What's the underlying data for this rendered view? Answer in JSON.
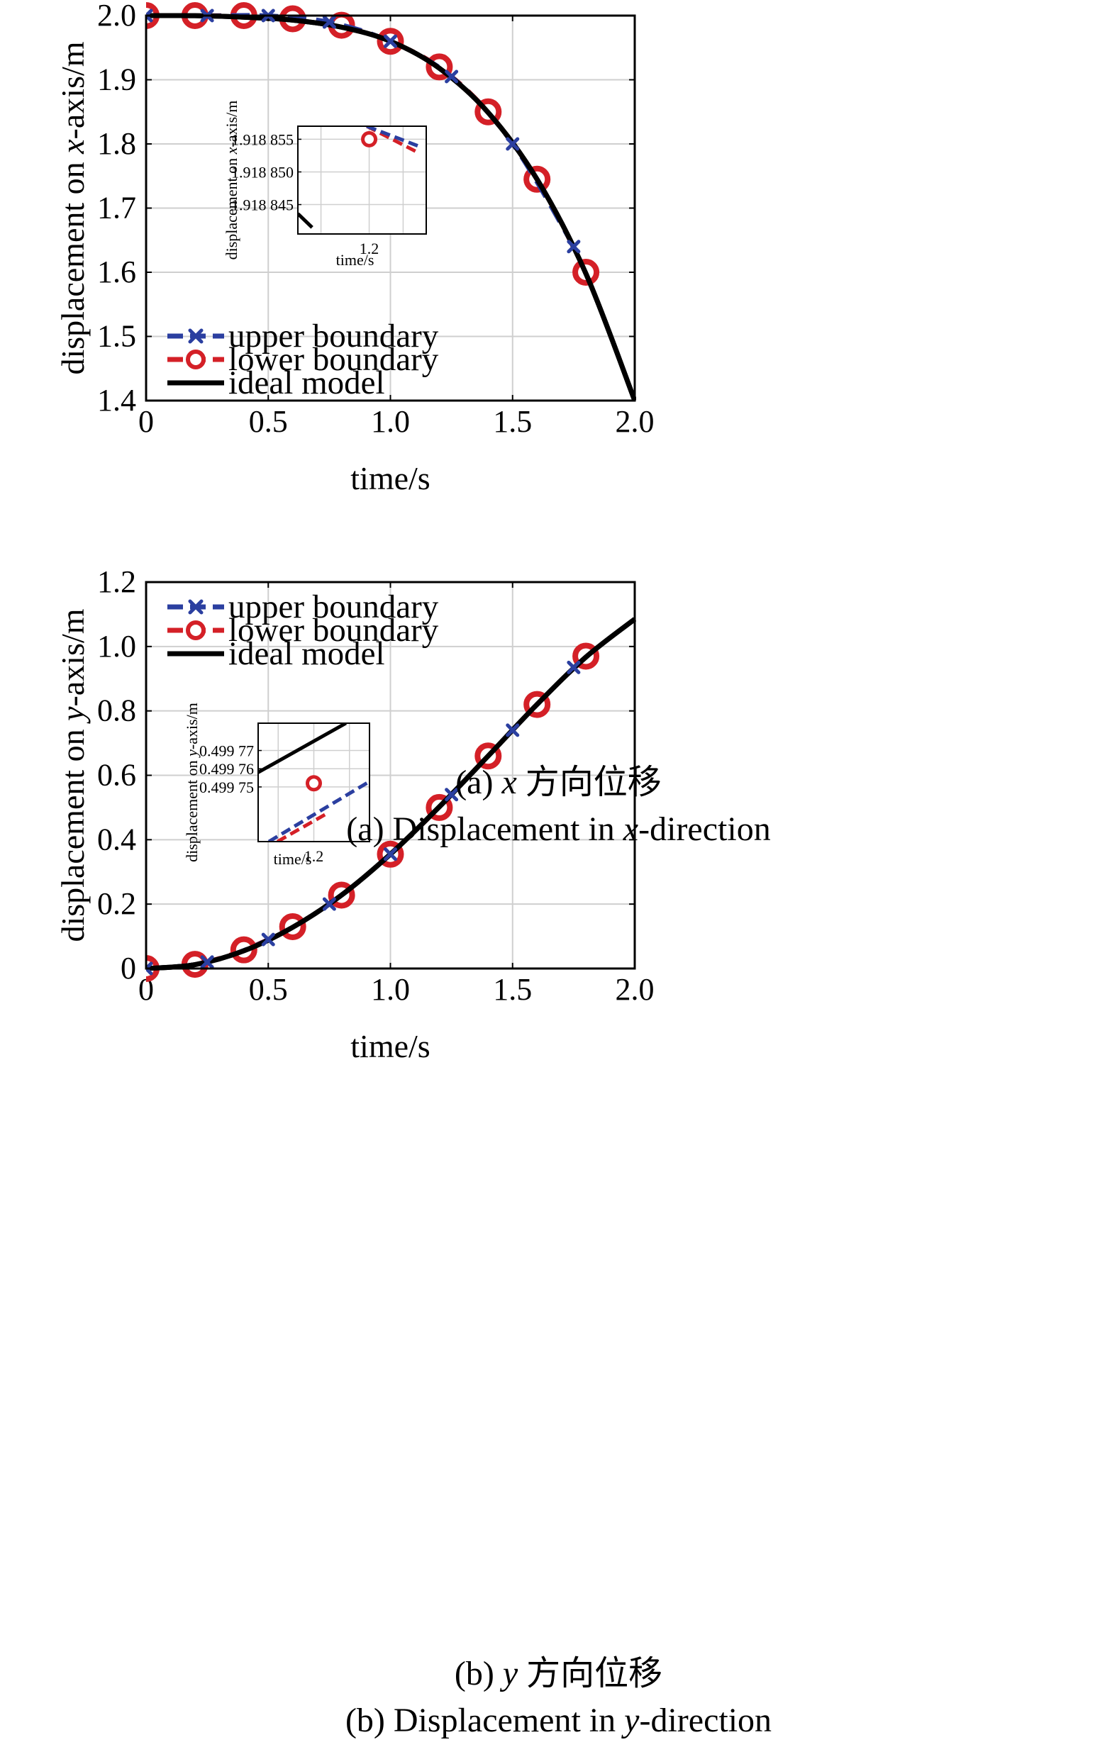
{
  "chart_data": [
    {
      "type": "line",
      "xlabel": "time/s",
      "ylabel_parts": [
        "displacement on ",
        "x",
        "-axis/m"
      ],
      "xlim": [
        0,
        2.0
      ],
      "ylim": [
        1.4,
        2.0
      ],
      "xticks": [
        "0",
        "0.5",
        "1.0",
        "1.5",
        "2.0"
      ],
      "yticks": [
        "1.4",
        "1.5",
        "1.6",
        "1.7",
        "1.8",
        "1.9",
        "2.0"
      ],
      "grid": true,
      "legend_position": "bottom-left",
      "caption_cn": [
        "(a) ",
        "x",
        " 方向位移"
      ],
      "caption_en": [
        "(a) Displacement in ",
        "x",
        "-direction"
      ],
      "series": [
        {
          "name": "upper boundary",
          "color": "#2b3fa0",
          "style": "dashed",
          "marker": "x",
          "x": [
            0,
            0.25,
            0.5,
            0.75,
            1.0,
            1.25,
            1.5,
            1.75
          ],
          "y": [
            2.0,
            2.0,
            2.0,
            1.99,
            1.96,
            1.905,
            1.8,
            1.64
          ]
        },
        {
          "name": "lower boundary",
          "color": "#d42027",
          "style": "dashed",
          "marker": "o",
          "x": [
            0,
            0.2,
            0.4,
            0.6,
            0.8,
            1.0,
            1.2,
            1.4,
            1.6,
            1.8
          ],
          "y": [
            2.0,
            2.0,
            2.0,
            1.995,
            1.985,
            1.96,
            1.92,
            1.85,
            1.745,
            1.6
          ]
        },
        {
          "name": "ideal model",
          "color": "#000000",
          "style": "solid",
          "marker": "none",
          "x": [
            0,
            0.2,
            0.4,
            0.6,
            0.8,
            1.0,
            1.2,
            1.4,
            1.6,
            1.8,
            2.0
          ],
          "y": [
            2.0,
            1.9998,
            1.9975,
            1.993,
            1.982,
            1.96,
            1.918,
            1.849,
            1.745,
            1.598,
            1.4
          ]
        }
      ],
      "inset": {
        "xlabel": "time/s",
        "ylabel_parts": [
          "displacement on ",
          "x",
          "-axis/m"
        ],
        "xticks": [
          "1.2"
        ],
        "yticks": [
          "1.918 845",
          "1.918 850",
          "1.918 855"
        ],
        "ytick_values": [
          1.918845,
          1.91885,
          1.918855
        ],
        "xlim": [
          1.1985,
          1.2012
        ],
        "ylim": [
          1.9188405,
          1.918857
        ],
        "series": [
          {
            "name": "upper boundary",
            "x": [
              1.19995,
              1.20102
            ],
            "y": [
              1.918857,
              1.918854
            ]
          },
          {
            "name": "lower boundary",
            "x": [
              1.19995,
              1.20102
            ],
            "y": [
              1.918857,
              1.918853
            ],
            "marker_x": 1.2,
            "marker_y": 1.918855
          },
          {
            "name": "ideal model",
            "x": [
              1.1985,
              1.1988
            ],
            "y": [
              1.9188436,
              1.9188415
            ]
          }
        ]
      }
    },
    {
      "type": "line",
      "xlabel": "time/s",
      "ylabel_parts": [
        "displacement on ",
        "y",
        "-axis/m"
      ],
      "xlim": [
        0,
        2.0
      ],
      "ylim": [
        0,
        1.2
      ],
      "xticks": [
        "0",
        "0.5",
        "1.0",
        "1.5",
        "2.0"
      ],
      "yticks": [
        "0",
        "0.2",
        "0.4",
        "0.6",
        "0.8",
        "1.0",
        "1.2"
      ],
      "grid": true,
      "legend_position": "top-left",
      "caption_cn": [
        "(b) ",
        "y",
        " 方向位移"
      ],
      "caption_en": [
        "(b) Displacement in ",
        "y",
        "-direction"
      ],
      "series": [
        {
          "name": "upper boundary",
          "color": "#2b3fa0",
          "style": "dashed",
          "marker": "x",
          "x": [
            0,
            0.25,
            0.5,
            0.75,
            1.0,
            1.25,
            1.5,
            1.75
          ],
          "y": [
            0,
            0.02,
            0.09,
            0.2,
            0.355,
            0.54,
            0.74,
            0.935
          ]
        },
        {
          "name": "lower boundary",
          "color": "#d42027",
          "style": "dashed",
          "marker": "o",
          "x": [
            0,
            0.2,
            0.4,
            0.6,
            0.8,
            1.0,
            1.2,
            1.4,
            1.6,
            1.8
          ],
          "y": [
            0,
            0.013,
            0.058,
            0.13,
            0.228,
            0.355,
            0.5,
            0.66,
            0.82,
            0.97
          ]
        },
        {
          "name": "ideal model",
          "color": "#000000",
          "style": "solid",
          "marker": "none",
          "x": [
            0,
            0.2,
            0.4,
            0.6,
            0.8,
            1.0,
            1.2,
            1.4,
            1.6,
            1.8,
            2.0
          ],
          "y": [
            0,
            0.012,
            0.055,
            0.128,
            0.228,
            0.355,
            0.502,
            0.66,
            0.82,
            0.967,
            1.085
          ]
        }
      ],
      "inset": {
        "xlabel": "time/s",
        "ylabel_parts": [
          "displacement on ",
          "y",
          "-axis/m"
        ],
        "xticks": [
          "1.2"
        ],
        "yticks": [
          "0.499 75",
          "0.499 76",
          "0.499 77"
        ],
        "ytick_values": [
          0.49975,
          0.49976,
          0.49977
        ],
        "xlim": [
          1.1974,
          1.2026
        ],
        "ylim": [
          0.49972,
          0.499785
        ],
        "series": [
          {
            "name": "upper boundary",
            "x": [
              1.1979,
              1.2026
            ],
            "y": [
              0.49972,
              0.499753
            ]
          },
          {
            "name": "lower boundary",
            "x": [
              1.1983,
              1.2007
            ],
            "y": [
              0.49972,
              0.499736
            ],
            "marker_x": 1.2,
            "marker_y": 0.499752
          },
          {
            "name": "ideal model",
            "x": [
              1.1974,
              1.2015
            ],
            "y": [
              0.499758,
              0.499785
            ]
          }
        ]
      }
    }
  ]
}
